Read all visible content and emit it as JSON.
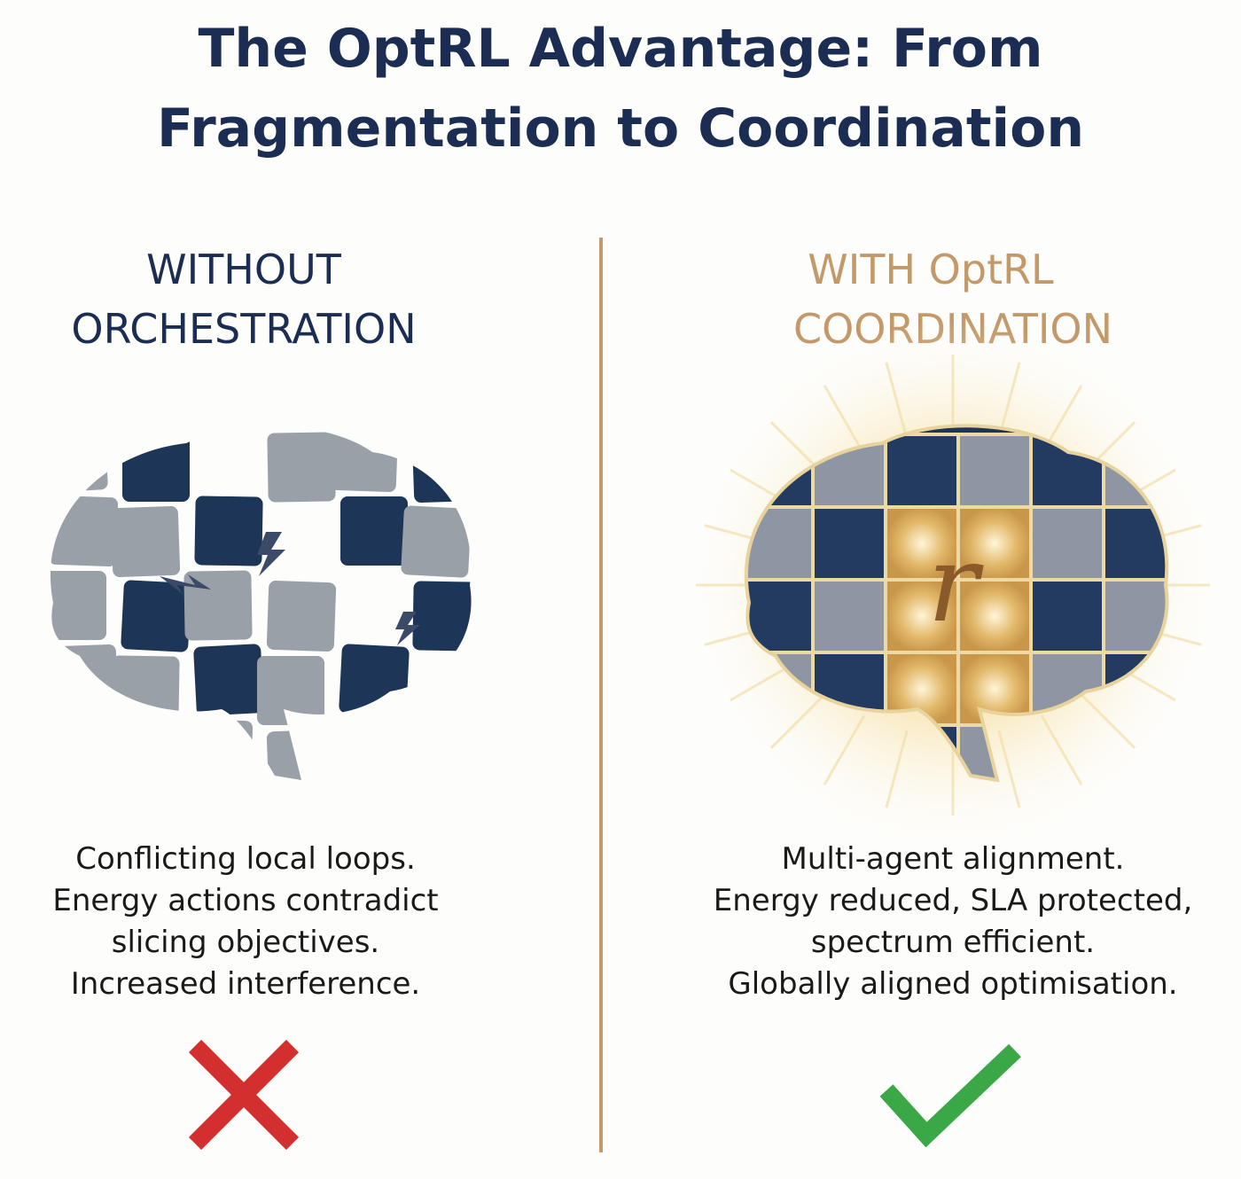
{
  "header": {
    "title_lines": [
      "The OptRL Advantage: From",
      "Fragmentation to Coordination"
    ]
  },
  "panels": [
    {
      "heading_lines": [
        "WITHOUT",
        "ORCHESTRATION"
      ],
      "description_lines": [
        "Conflicting local loops.",
        "Energy actions contradict",
        "slicing objectives.",
        "Increased interference."
      ]
    },
    {
      "heading_lines": [
        "WITH OptRL",
        "COORDINATION"
      ],
      "symbol": "r",
      "description_lines": [
        "Multi-agent alignment.",
        "Energy reduced, SLA protected,",
        "spectrum efficient.",
        "Globally aligned optimisation."
      ]
    }
  ]
}
